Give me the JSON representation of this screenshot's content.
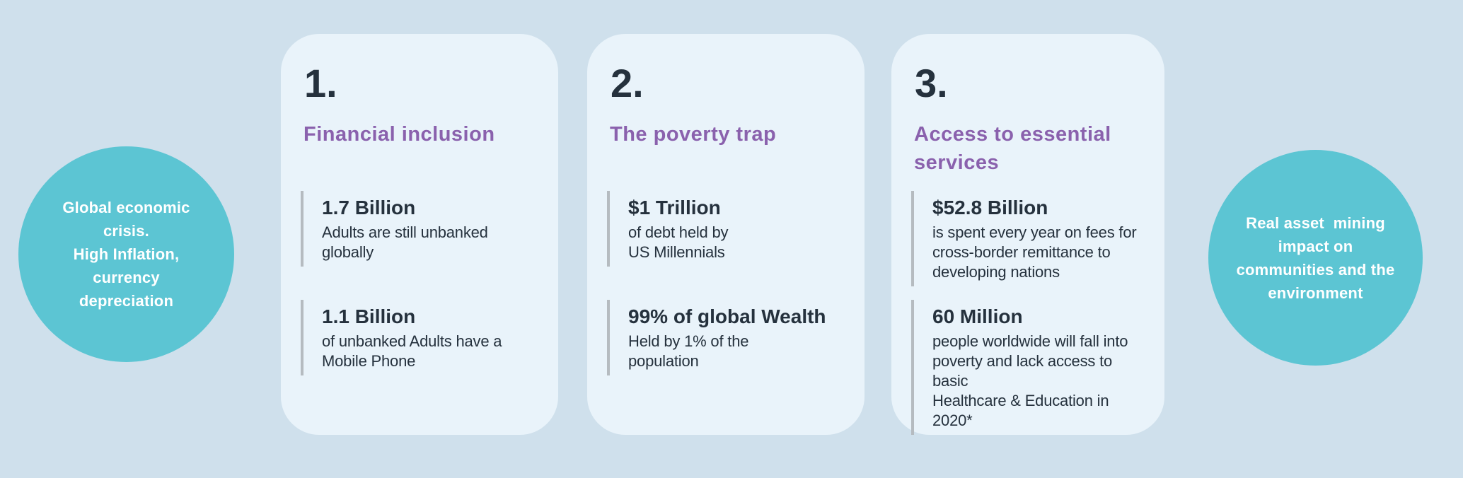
{
  "colors": {
    "page_background": "#cfe0ec",
    "card_background": "#e9f3fa",
    "circle_background": "#5cc5d3",
    "circle_text": "#ffffff",
    "heading_purple": "#8a61ad",
    "text_dark": "#25313d",
    "stat_bar_gray": "#b5bbc0"
  },
  "left_circle": {
    "text": "Global economic\ncrisis.\nHigh Inflation,\ncurrency\ndepreciation"
  },
  "right_circle": {
    "text": "Real asset  mining\nimpact on\ncommunities and the\nenvironment"
  },
  "cards": [
    {
      "number": "1.",
      "title": "Financial inclusion",
      "stats": [
        {
          "value": "1.7 Billion",
          "description": "Adults are still unbanked\nglobally"
        },
        {
          "value": "1.1 Billion",
          "description": "of unbanked Adults have a\nMobile Phone"
        }
      ]
    },
    {
      "number": "2.",
      "title": "The poverty trap",
      "stats": [
        {
          "value": "$1 Trillion",
          "description": "of debt held by\nUS Millennials"
        },
        {
          "value": "99% of global Wealth",
          "description": "Held by 1% of the\npopulation"
        }
      ]
    },
    {
      "number": "3.",
      "title": "Access to essential\nservices",
      "stats": [
        {
          "value": "$52.8 Billion",
          "description": "is spent every year on fees for\ncross-border remittance to\ndeveloping nations"
        },
        {
          "value": "60 Million",
          "description": "people worldwide will fall into\npoverty and lack access to basic\nHealthcare & Education in 2020*"
        }
      ]
    }
  ]
}
